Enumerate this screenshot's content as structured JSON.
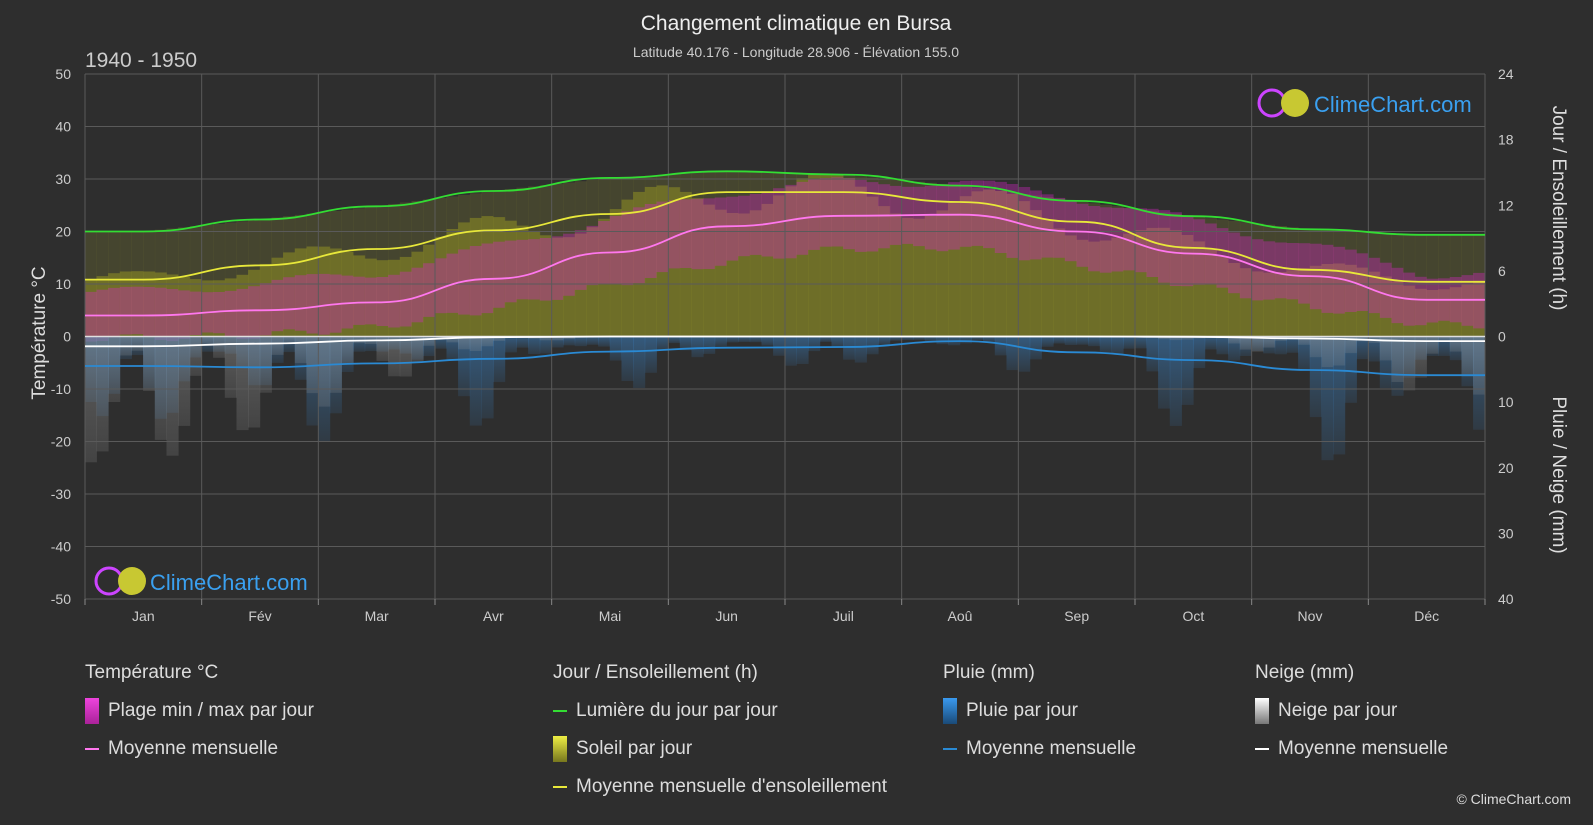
{
  "header": {
    "title": "Changement climatique en Bursa",
    "subtitle": "Latitude 40.176 - Longitude 28.906 - Élévation 155.0",
    "period": "1940 - 1950"
  },
  "logo": {
    "text": "ClimeChart.com"
  },
  "copyright": "© ClimeChart.com",
  "colors": {
    "background": "#2e2e2e",
    "daylight": "#33dd33",
    "sunshine_mean": "#e8e83a",
    "sunshine_fill": "#8a8a24",
    "temp_mean": "#ff77ee",
    "temp_range": "#dd22cc",
    "rain": "#2a8ad4",
    "rain_mean": "#2a8ad4",
    "snow": "#cccccc",
    "snow_mean": "#ffffff"
  },
  "chart_data": {
    "type": "line",
    "categories": [
      "Jan",
      "Fév",
      "Mar",
      "Avr",
      "Mai",
      "Jun",
      "Juil",
      "Aoû",
      "Sep",
      "Oct",
      "Nov",
      "Déc"
    ],
    "y_left": {
      "label": "Température °C",
      "range": [
        -50,
        50
      ],
      "ticks": [
        50,
        40,
        30,
        20,
        10,
        0,
        -10,
        -20,
        -30,
        -40,
        -50
      ]
    },
    "y_right_top": {
      "label": "Jour / Ensoleillement (h)",
      "range": [
        0,
        24
      ],
      "ticks": [
        24,
        18,
        12,
        6,
        0
      ]
    },
    "y_right_bottom": {
      "label": "Pluie / Neige (mm)",
      "range": [
        0,
        40
      ],
      "ticks": [
        0,
        10,
        20,
        30,
        40
      ]
    },
    "series": [
      {
        "name": "Lumière du jour par jour",
        "axis": "hours",
        "values": [
          9.6,
          10.7,
          11.9,
          13.3,
          14.5,
          15.1,
          14.8,
          13.8,
          12.4,
          11.0,
          9.8,
          9.3
        ]
      },
      {
        "name": "Moyenne mensuelle d'ensoleillement",
        "axis": "hours",
        "values": [
          5.2,
          6.5,
          8.0,
          9.7,
          11.2,
          13.2,
          13.2,
          12.3,
          10.5,
          8.1,
          6.1,
          5.0
        ]
      },
      {
        "name": "Soleil par jour",
        "axis": "hours",
        "values": [
          5.2,
          6.5,
          8.0,
          9.7,
          11.2,
          13.2,
          13.2,
          12.3,
          10.5,
          8.1,
          6.1,
          5.0
        ]
      },
      {
        "name": "Moyenne mensuelle",
        "kind": "temp_mean",
        "axis": "temp",
        "values": [
          4.0,
          5.0,
          6.5,
          11.0,
          16.0,
          21.0,
          23.0,
          23.2,
          20.0,
          15.8,
          11.5,
          7.0
        ]
      },
      {
        "name": "Plage min / max par jour",
        "axis": "temp",
        "min": [
          0.5,
          1.0,
          2.5,
          6.0,
          10.5,
          15.0,
          17.5,
          17.8,
          14.5,
          10.5,
          6.5,
          3.0
        ],
        "max": [
          7.5,
          9.0,
          11.0,
          16.0,
          21.5,
          26.5,
          28.5,
          28.5,
          25.5,
          21.0,
          16.5,
          11.0
        ]
      },
      {
        "name": "Moyenne mensuelle",
        "kind": "rain_mean",
        "axis": "precip",
        "values": [
          4.5,
          4.7,
          4.1,
          3.4,
          2.3,
          1.7,
          1.6,
          0.7,
          2.4,
          3.6,
          5.1,
          5.9
        ]
      },
      {
        "name": "Moyenne mensuelle",
        "kind": "snow_mean",
        "axis": "precip",
        "values": [
          1.5,
          1.1,
          0.6,
          0.1,
          0.0,
          0.0,
          0.0,
          0.0,
          0.0,
          0.05,
          0.3,
          0.7
        ]
      }
    ]
  },
  "legend": {
    "temperature": {
      "heading": "Température °C",
      "items": [
        "Plage min / max par jour",
        "Moyenne mensuelle"
      ]
    },
    "sun": {
      "heading": "Jour / Ensoleillement (h)",
      "items": [
        "Lumière du jour par jour",
        "Soleil par jour",
        "Moyenne mensuelle d'ensoleillement"
      ]
    },
    "rain": {
      "heading": "Pluie (mm)",
      "items": [
        "Pluie par jour",
        "Moyenne mensuelle"
      ]
    },
    "snow": {
      "heading": "Neige (mm)",
      "items": [
        "Neige par jour",
        "Moyenne mensuelle"
      ]
    }
  }
}
